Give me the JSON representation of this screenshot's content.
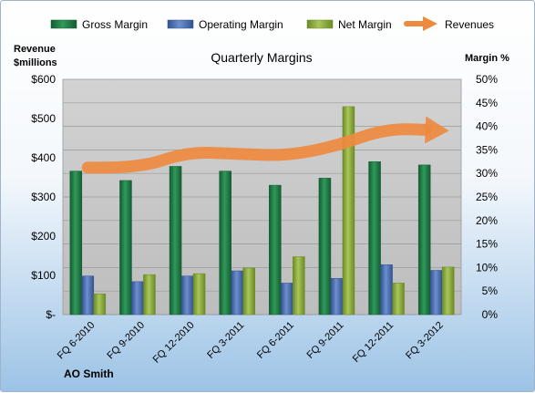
{
  "chart_data": {
    "type": "bar",
    "title": "Quarterly Margins",
    "company": "AO Smith",
    "ylabel_left": [
      "Revenue",
      "$millions"
    ],
    "ylabel_right": "Margin %",
    "ylim_left": [
      0,
      600
    ],
    "ylim_right": [
      0,
      50
    ],
    "left_ticks": [
      "$-",
      "$100",
      "$200",
      "$300",
      "$400",
      "$500",
      "$600"
    ],
    "right_ticks": [
      "0%",
      "5%",
      "10%",
      "15%",
      "20%",
      "25%",
      "30%",
      "35%",
      "40%",
      "45%",
      "50%"
    ],
    "categories": [
      "FQ 6-2010",
      "FQ 9-2010",
      "FQ 12-2010",
      "FQ 3-2011",
      "FQ 6-2011",
      "FQ 9-2011",
      "FQ 12-2011",
      "FQ 3-2012"
    ],
    "series": [
      {
        "name": "Gross Margin",
        "type": "bar",
        "axis": "right",
        "color": "#1f7a45",
        "values": [
          30.5,
          28.5,
          31.5,
          30.5,
          27.5,
          29,
          32.5,
          31.8
        ]
      },
      {
        "name": "Operating Margin",
        "type": "bar",
        "axis": "right",
        "color": "#4f73b8",
        "values": [
          8.2,
          7,
          8.2,
          9.3,
          6.7,
          7.7,
          10.6,
          9.4
        ]
      },
      {
        "name": "Net Margin",
        "type": "bar",
        "axis": "right",
        "color": "#8fae3c",
        "values": [
          4.4,
          8.5,
          8.7,
          9.9,
          12.3,
          44.2,
          6.7,
          10.1
        ]
      },
      {
        "name": "Revenues",
        "type": "line",
        "axis": "left",
        "color": "#ee8a3f",
        "values": [
          375,
          372,
          415,
          410,
          405,
          430,
          475,
          470
        ]
      }
    ],
    "legend_position": "top",
    "grid": true
  }
}
